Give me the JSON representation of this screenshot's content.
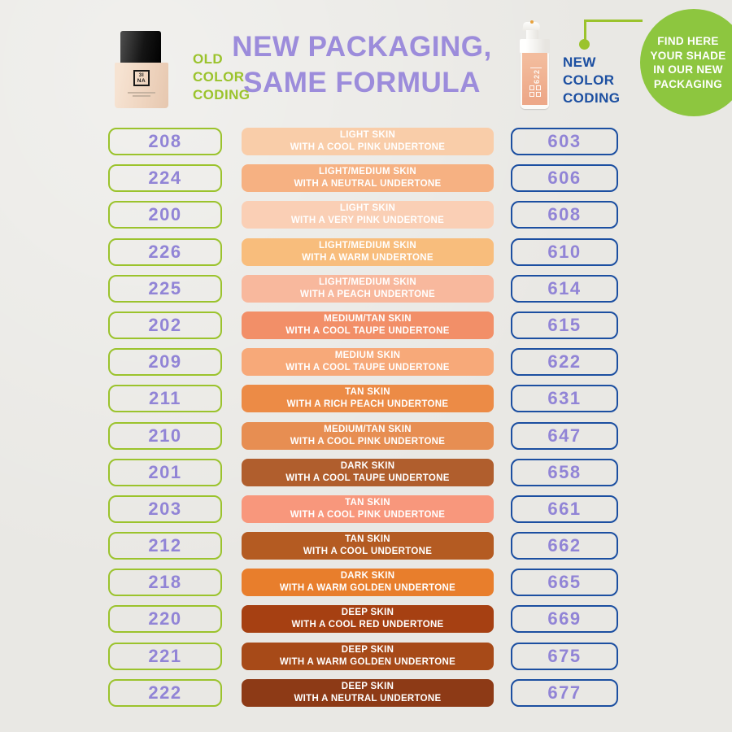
{
  "page": {
    "background": "#E9E8E4"
  },
  "colors": {
    "green_accent": "#9BC32C",
    "green_circle": "#8DC63F",
    "purple_title": "#9C8CDB",
    "purple_numbers": "#9184D6",
    "blue_accent": "#1C4FA1",
    "white": "#FFFFFF"
  },
  "header": {
    "title_line1": "NEW PACKAGING,",
    "title_line2": "SAME FORMULA",
    "old_coding_label": "OLD\nCOLOR\nCODING",
    "new_coding_label": "NEW\nCOLOR\nCODING",
    "badge_text": "FIND HERE\nYOUR SHADE\nIN OUR NEW\nPACKAGING",
    "old_bottle": {
      "brand_top": "3I",
      "brand_bottom": "NA"
    },
    "new_bottle": {
      "shade": "622"
    }
  },
  "rows": [
    {
      "old": "208",
      "skin": "LIGHT SKIN",
      "undertone": "WITH A COOL PINK UNDERTONE",
      "new": "603",
      "swatch": "#F9CDA9"
    },
    {
      "old": "224",
      "skin": "LIGHT/MEDIUM SKIN",
      "undertone": "WITH A NEUTRAL UNDERTONE",
      "new": "606",
      "swatch": "#F6B182"
    },
    {
      "old": "200",
      "skin": "LIGHT SKIN",
      "undertone": "WITH A VERY PINK UNDERTONE",
      "new": "608",
      "swatch": "#FACFB5"
    },
    {
      "old": "226",
      "skin": "LIGHT/MEDIUM SKIN",
      "undertone": "WITH A WARM UNDERTONE",
      "new": "610",
      "swatch": "#F8BD7C"
    },
    {
      "old": "225",
      "skin": "LIGHT/MEDIUM SKIN",
      "undertone": "WITH A PEACH UNDERTONE",
      "new": "614",
      "swatch": "#F8B89D"
    },
    {
      "old": "202",
      "skin": "MEDIUM/TAN SKIN",
      "undertone": "WITH A COOL TAUPE UNDERTONE",
      "new": "615",
      "swatch": "#F28F68"
    },
    {
      "old": "209",
      "skin": "MEDIUM SKIN",
      "undertone": "WITH A COOL TAUPE UNDERTONE",
      "new": "622",
      "swatch": "#F7A979"
    },
    {
      "old": "211",
      "skin": "TAN SKIN",
      "undertone": "WITH A RICH PEACH UNDERTONE",
      "new": "631",
      "swatch": "#EC8B46"
    },
    {
      "old": "210",
      "skin": "MEDIUM/TAN SKIN",
      "undertone": "WITH A COOL PINK UNDERTONE",
      "new": "647",
      "swatch": "#E78E52"
    },
    {
      "old": "201",
      "skin": "DARK SKIN",
      "undertone": "WITH A COOL TAUPE UNDERTONE",
      "new": "658",
      "swatch": "#B05E2D"
    },
    {
      "old": "203",
      "skin": "TAN SKIN",
      "undertone": "WITH A COOL PINK UNDERTONE",
      "new": "661",
      "swatch": "#F8977C"
    },
    {
      "old": "212",
      "skin": "TAN SKIN",
      "undertone": "WITH A COOL UNDERTONE",
      "new": "662",
      "swatch": "#B45B22"
    },
    {
      "old": "218",
      "skin": "DARK SKIN",
      "undertone": "WITH A WARM GOLDEN UNDERTONE",
      "new": "665",
      "swatch": "#E87E2C"
    },
    {
      "old": "220",
      "skin": "DEEP SKIN",
      "undertone": "WITH A COOL RED UNDERTONE",
      "new": "669",
      "swatch": "#A64012"
    },
    {
      "old": "221",
      "skin": "DEEP SKIN",
      "undertone": "WITH A WARM GOLDEN UNDERTONE",
      "new": "675",
      "swatch": "#A74A18"
    },
    {
      "old": "222",
      "skin": "DEEP SKIN",
      "undertone": "WITH A NEUTRAL UNDERTONE",
      "new": "677",
      "swatch": "#8D3A16"
    }
  ]
}
